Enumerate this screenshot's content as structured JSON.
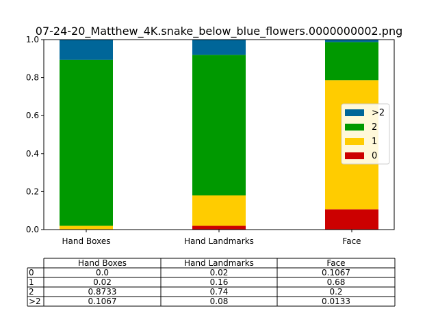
{
  "chart_data": {
    "type": "bar",
    "stacked": true,
    "title": "07-24-20_Matthew_4K.snake_below_blue_flowers.0000000002.png",
    "categories": [
      "Hand Boxes",
      "Hand Landmarks",
      "Face"
    ],
    "ylim": [
      0,
      1.0
    ],
    "yticks": [
      "0.0",
      "0.2",
      "0.4",
      "0.6",
      "0.8",
      "1.0"
    ],
    "grid": false,
    "legend_position": "center-right",
    "series": [
      {
        "name": "0",
        "color": "#cc0000",
        "values": [
          0.0,
          0.02,
          0.1067
        ]
      },
      {
        "name": "1",
        "color": "#ffcc00",
        "values": [
          0.02,
          0.16,
          0.68
        ]
      },
      {
        "name": "2",
        "color": "#009900",
        "values": [
          0.8733,
          0.74,
          0.2
        ]
      },
      {
        "name": ">2",
        "color": "#006699",
        "values": [
          0.1067,
          0.08,
          0.0133
        ]
      }
    ],
    "table": {
      "columns": [
        "Hand Boxes",
        "Hand Landmarks",
        "Face"
      ],
      "rows": [
        {
          "label": "0",
          "cells": [
            "0.0",
            "0.02",
            "0.1067"
          ]
        },
        {
          "label": "1",
          "cells": [
            "0.02",
            "0.16",
            "0.68"
          ]
        },
        {
          "label": "2",
          "cells": [
            "0.8733",
            "0.74",
            "0.2"
          ]
        },
        {
          "label": ">2",
          "cells": [
            "0.1067",
            "0.08",
            "0.0133"
          ]
        }
      ]
    }
  }
}
